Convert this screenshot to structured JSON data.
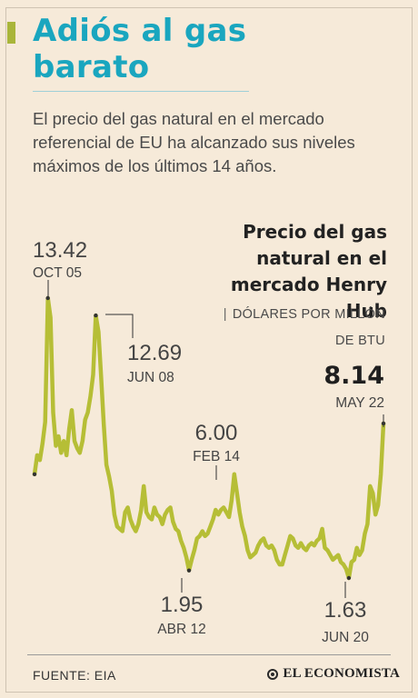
{
  "header": {
    "title": "Adiós al gas barato",
    "lede": "El precio del gas natural en el mercado referencial de EU ha alcanzado sus niveles máximos de los últimos 14 años."
  },
  "chart_data": {
    "type": "line",
    "title": "Precio del gas natural en el mercado Henry Hub",
    "unit": "DÓLARES POR MILLÓN DE BTU",
    "xlabel": "",
    "ylabel": "",
    "grid": false,
    "series_color": "#b6be36",
    "series": [
      {
        "values": [
          6.0,
          6.8,
          6.6,
          7.3,
          8.2,
          13.42,
          12.6,
          8.6,
          7.2,
          7.6,
          6.9,
          7.4,
          6.8,
          7.9,
          8.7,
          7.4,
          7.1,
          6.9,
          7.4,
          8.3,
          8.6,
          9.3,
          10.2,
          12.69,
          12.0,
          10.1,
          8.1,
          6.4,
          5.9,
          5.3,
          4.3,
          3.8,
          3.7,
          3.6,
          4.4,
          4.6,
          4.1,
          3.8,
          3.6,
          3.9,
          4.5,
          5.5,
          4.4,
          4.2,
          4.1,
          4.6,
          4.3,
          4.2,
          3.9,
          4.3,
          4.5,
          4.6,
          4.0,
          3.7,
          3.6,
          3.2,
          2.9,
          2.5,
          1.95,
          2.4,
          2.8,
          3.3,
          3.4,
          3.6,
          3.4,
          3.5,
          3.8,
          4.1,
          4.5,
          4.3,
          4.5,
          4.6,
          4.4,
          4.2,
          4.9,
          6.0,
          5.2,
          4.4,
          3.8,
          3.4,
          2.8,
          2.5,
          2.6,
          2.7,
          3.0,
          3.2,
          3.3,
          3.0,
          2.9,
          3.0,
          2.8,
          2.4,
          2.2,
          2.2,
          2.6,
          3.0,
          3.4,
          3.3,
          3.0,
          2.9,
          3.1,
          2.9,
          2.8,
          3.0,
          3.1,
          3.0,
          3.2,
          3.3,
          3.7,
          2.9,
          2.8,
          2.6,
          2.4,
          2.5,
          2.6,
          2.3,
          2.2,
          2.0,
          1.63,
          2.3,
          2.4,
          2.9,
          2.6,
          2.8,
          3.5,
          3.9,
          5.5,
          5.2,
          4.3,
          4.7,
          6.0,
          8.14
        ]
      }
    ],
    "annotations": [
      {
        "value": "13.42",
        "date": "OCT 05"
      },
      {
        "value": "12.69",
        "date": "JUN 08"
      },
      {
        "value": "6.00",
        "date": "FEB 14"
      },
      {
        "value": "1.95",
        "date": "ABR 12"
      },
      {
        "value": "1.63",
        "date": "JUN 20"
      },
      {
        "value": "8.14",
        "date": "MAY 22"
      }
    ]
  },
  "footer": {
    "source": "FUENTE: EIA",
    "logo": "EL ECONOMISTA"
  }
}
